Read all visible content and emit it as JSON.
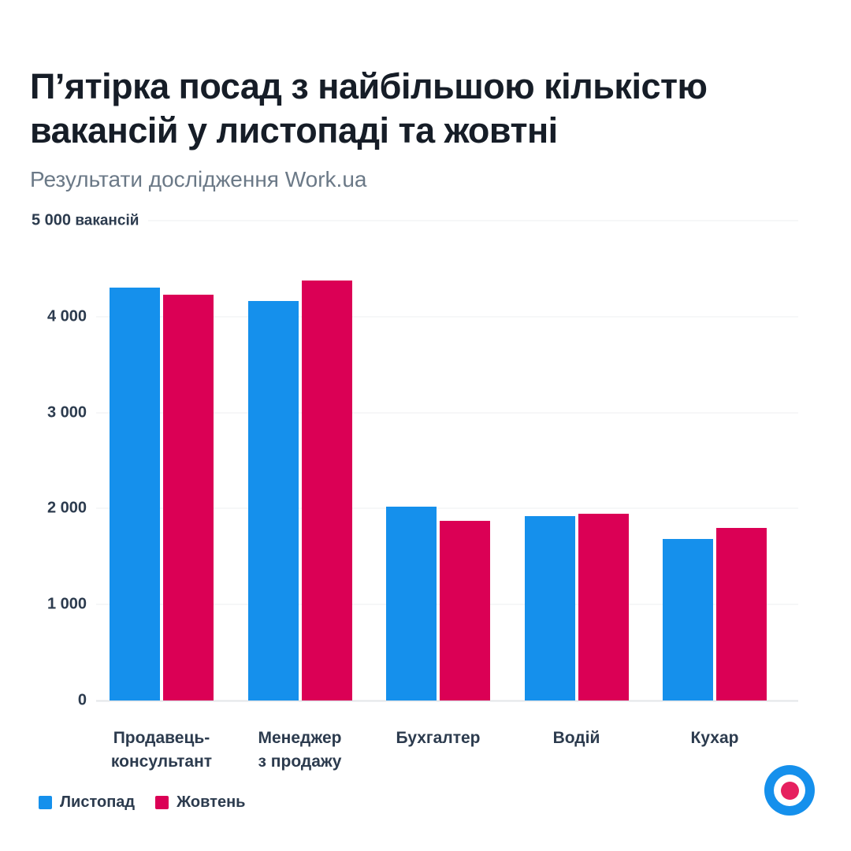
{
  "header": {
    "title_lines": [
      "П’ятірка посад з найбільшою кількістю",
      "вакансій у листопаді та жовтні"
    ],
    "subtitle": "Результати дослідження Work.ua"
  },
  "chart_data": {
    "type": "bar",
    "title": "П’ятірка посад з найбільшою кількістю вакансій у листопаді та жовтні",
    "subtitle": "Результати дослідження Work.ua",
    "categories": [
      "Продавець-консультант",
      "Менеджер з продажу",
      "Бухгалтер",
      "Водій",
      "Кухар"
    ],
    "category_lines": [
      [
        "Продавець-",
        "консультант"
      ],
      [
        "Менеджер",
        "з продажу"
      ],
      [
        "Бухгалтер"
      ],
      [
        "Водій"
      ],
      [
        "Кухар"
      ]
    ],
    "series": [
      {
        "name": "Листопад",
        "color": "#1590EC",
        "values": [
          4300,
          4160,
          2020,
          1920,
          1680
        ]
      },
      {
        "name": "Жовтень",
        "color": "#DB0055",
        "values": [
          4230,
          4380,
          1870,
          1950,
          1800
        ]
      }
    ],
    "ylim": [
      0,
      5000
    ],
    "yticks": [
      {
        "value": 5000,
        "label": "5 000",
        "unit": "вакансій"
      },
      {
        "value": 4000,
        "label": "4 000"
      },
      {
        "value": 3000,
        "label": "3 000"
      },
      {
        "value": 2000,
        "label": "2 000"
      },
      {
        "value": 1000,
        "label": "1 000"
      },
      {
        "value": 0,
        "label": "0"
      }
    ],
    "grid": "horizontal",
    "legend_position": "bottom-left"
  },
  "footer": {
    "logo": {
      "name": "Work.ua",
      "ring_color": "#1590EC",
      "dot_color": "#E6205F"
    }
  },
  "colors": {
    "title": "#161D27",
    "subtitle": "#6B7987",
    "axis_text": "#2C3B4E",
    "gridline": "#EDEFF2",
    "baseline": "#E3E6E9",
    "background": "#FFFFFF"
  }
}
